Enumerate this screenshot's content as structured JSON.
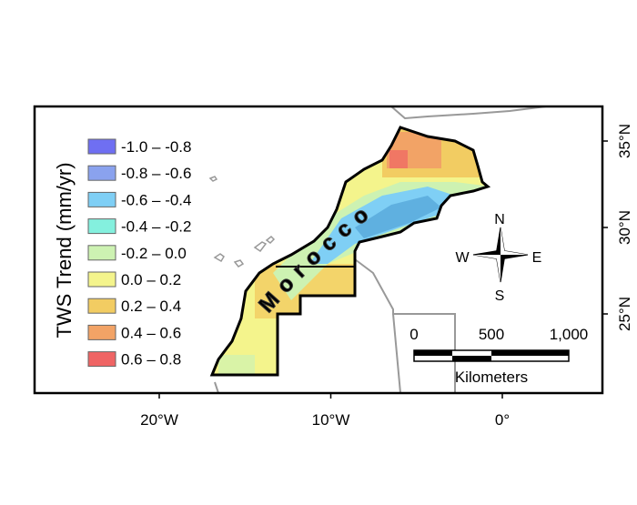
{
  "map": {
    "y_axis_title": "TWS Trend (mm/yr)",
    "legend": [
      {
        "label": "-1.0 – -0.8",
        "color": "#6f6ff2"
      },
      {
        "label": "-0.8 – -0.6",
        "color": "#8aa2ee"
      },
      {
        "label": "-0.6 – -0.4",
        "color": "#7fcff5"
      },
      {
        "label": "-0.4 – -0.2",
        "color": "#84f0de"
      },
      {
        "label": "-0.2 – 0.0",
        "color": "#cdf2b2"
      },
      {
        "label": "0.0 – 0.2",
        "color": "#f4f48c"
      },
      {
        "label": "0.2 – 0.4",
        "color": "#f2cc62"
      },
      {
        "label": "0.4 – 0.6",
        "color": "#f2a366"
      },
      {
        "label": "0.6 – 0.8",
        "color": "#ef6464"
      }
    ],
    "lon_ticks": [
      {
        "value": -20,
        "label": "20°W"
      },
      {
        "value": -10,
        "label": "10°W"
      },
      {
        "value": 0,
        "label": "0°"
      }
    ],
    "lat_ticks": [
      {
        "value": 25,
        "label": "25°N"
      },
      {
        "value": 30,
        "label": "30°N"
      },
      {
        "value": 35,
        "label": "35°N"
      }
    ],
    "country_label": "Morocco",
    "compass": {
      "north": "N",
      "south": "S",
      "east": "E",
      "west": "W"
    },
    "scale_bar": {
      "ticks": [
        0,
        500,
        {
          "value": 1000,
          "label": "1,000"
        }
      ],
      "unit": "Kilometers"
    }
  }
}
